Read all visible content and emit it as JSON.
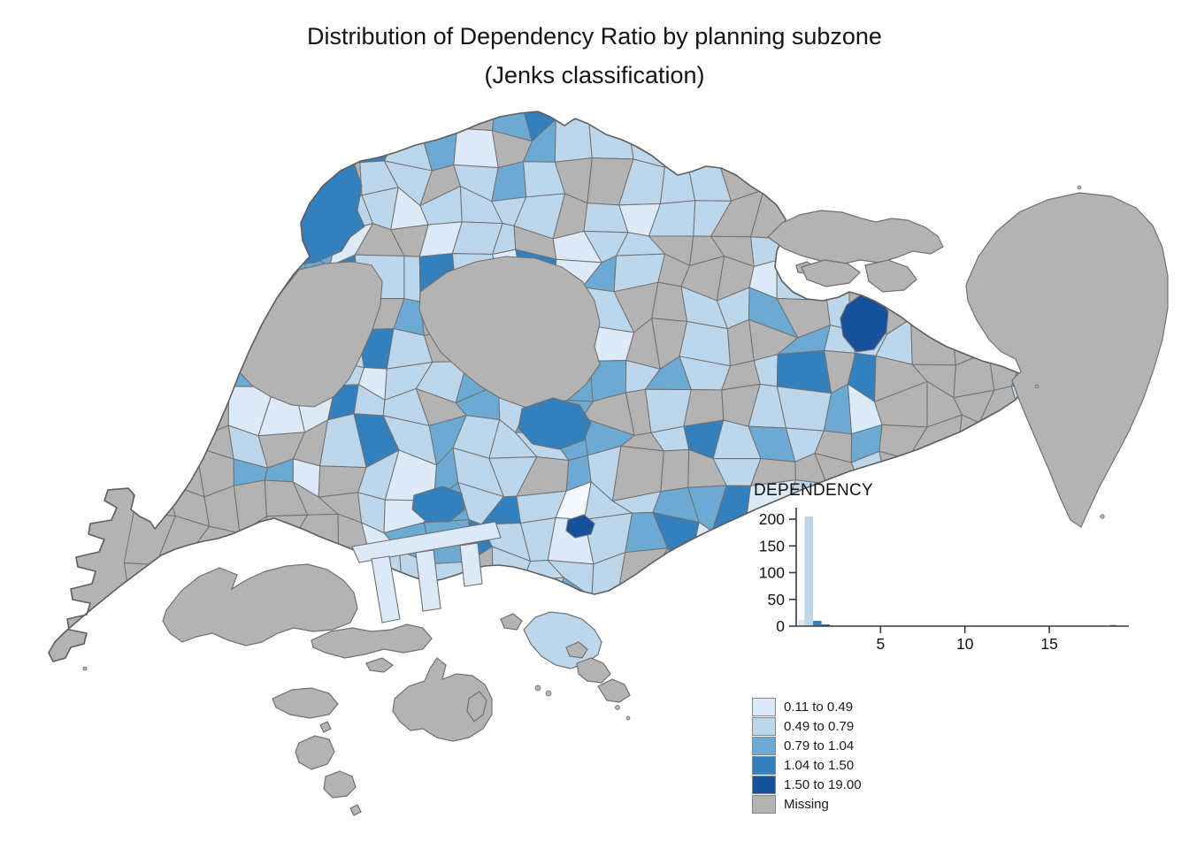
{
  "title": {
    "line1": "Distribution of Dependency Ratio by planning subzone",
    "line2": "(Jenks classification)"
  },
  "legend": {
    "title": "DEPENDENCY",
    "classes": [
      {
        "label": "0.11 to 0.49",
        "color": "#DCE9F6"
      },
      {
        "label": "0.49 to 0.79",
        "color": "#BCD6EB"
      },
      {
        "label": "0.79 to 1.04",
        "color": "#6CA9D3"
      },
      {
        "label": "1.04 to 1.50",
        "color": "#3380BD"
      },
      {
        "label": "1.50 to 19.00",
        "color": "#17519E"
      },
      {
        "label": "Missing",
        "color": "#B3B3B3"
      }
    ]
  },
  "chart_data": {
    "type": "choropleth-map-with-histogram-legend",
    "map": {
      "region": "Singapore planning subzones",
      "variable": "DEPENDENCY",
      "classification": "jenks",
      "class_breaks": [
        0.11,
        0.49,
        0.79,
        1.04,
        1.5,
        19.0
      ],
      "missing_label": "Missing"
    },
    "histogram": {
      "x_range": [
        0,
        19.4
      ],
      "y_range": [
        0,
        215
      ],
      "x_ticks": [
        5,
        10,
        15
      ],
      "y_ticks": [
        0,
        50,
        100,
        150,
        200
      ],
      "bins": [
        {
          "from": 0.11,
          "to": 0.5,
          "count": 12,
          "class_index": 0
        },
        {
          "from": 0.5,
          "to": 1.0,
          "count": 205,
          "class_index": 1
        },
        {
          "from": 1.0,
          "to": 1.5,
          "count": 10,
          "class_index": 3
        },
        {
          "from": 1.5,
          "to": 2.0,
          "count": 3,
          "class_index": 4
        },
        {
          "from": 18.6,
          "to": 19.0,
          "count": 2,
          "class_index": 4
        }
      ]
    }
  },
  "colors": {
    "background": "#FFFFFF",
    "subzone_border": "#707070",
    "coastline": "#5E5E5E",
    "axis": "#3A3A3A"
  }
}
